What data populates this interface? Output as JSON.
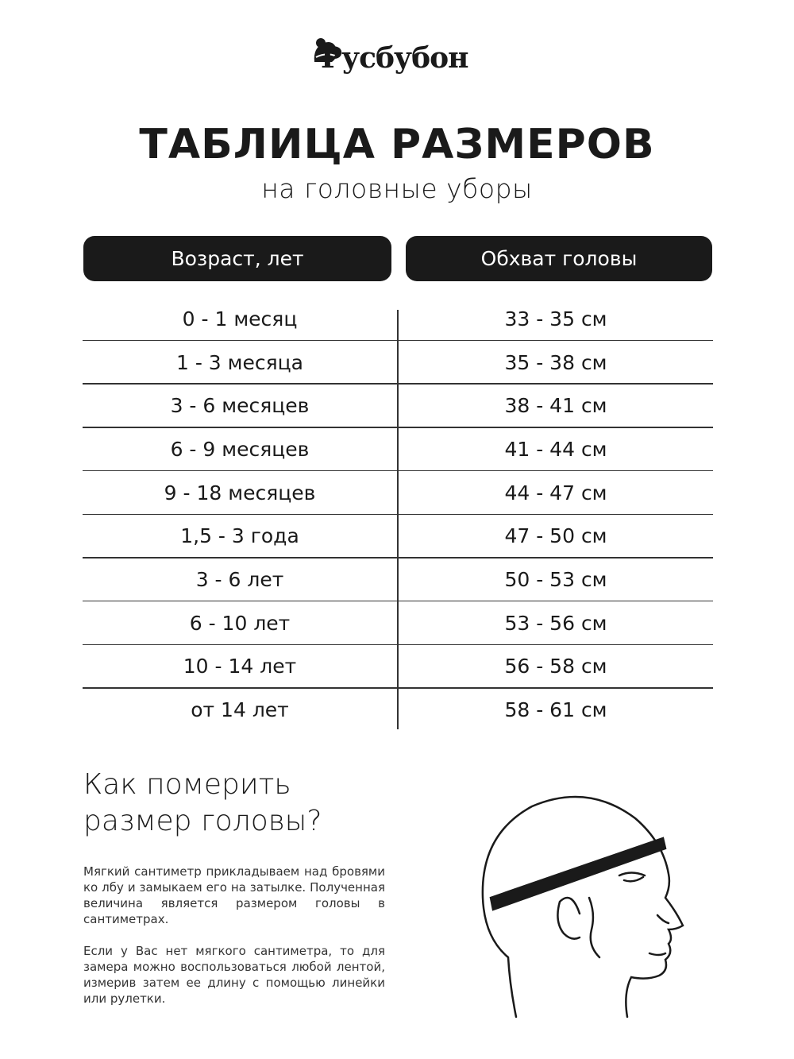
{
  "brand": {
    "name": "Русбубон"
  },
  "title": "ТАБЛИЦА РАЗМЕРОВ",
  "subtitle": "на головные уборы",
  "table": {
    "headers": [
      "Возраст, лет",
      "Обхват головы"
    ],
    "rows": [
      [
        "0 - 1 месяц",
        "33 - 35 см"
      ],
      [
        "1 - 3 месяца",
        "35 - 38 см"
      ],
      [
        "3 - 6 месяцев",
        "38 - 41 см"
      ],
      [
        "6 - 9 месяцев",
        "41 - 44 см"
      ],
      [
        "9 - 18 месяцев",
        "44 - 47 см"
      ],
      [
        "1,5 - 3 года",
        "47 - 50 см"
      ],
      [
        "3 - 6 лет",
        "50 - 53 см"
      ],
      [
        "6 - 10 лет",
        "53 - 56 см"
      ],
      [
        "10 - 14 лет",
        "56 - 58 см"
      ],
      [
        "от 14 лет",
        "58 - 61 см"
      ]
    ]
  },
  "howto": {
    "heading_line1": "Как померить",
    "heading_line2": "размер головы?",
    "paragraph1": "Мягкий сантиметр прикладываем над бровями ко лбу и замыкаем его на затылке. Полученная величина является размером головы в сантиметрах.",
    "paragraph2": "Если у Вас нет мягкого сантиметра, то для замера можно воспользоваться любой лентой, измерив затем ее длину с помощью линейки или рулетки."
  },
  "illustration": {
    "icon": "head-with-measuring-tape-icon"
  }
}
